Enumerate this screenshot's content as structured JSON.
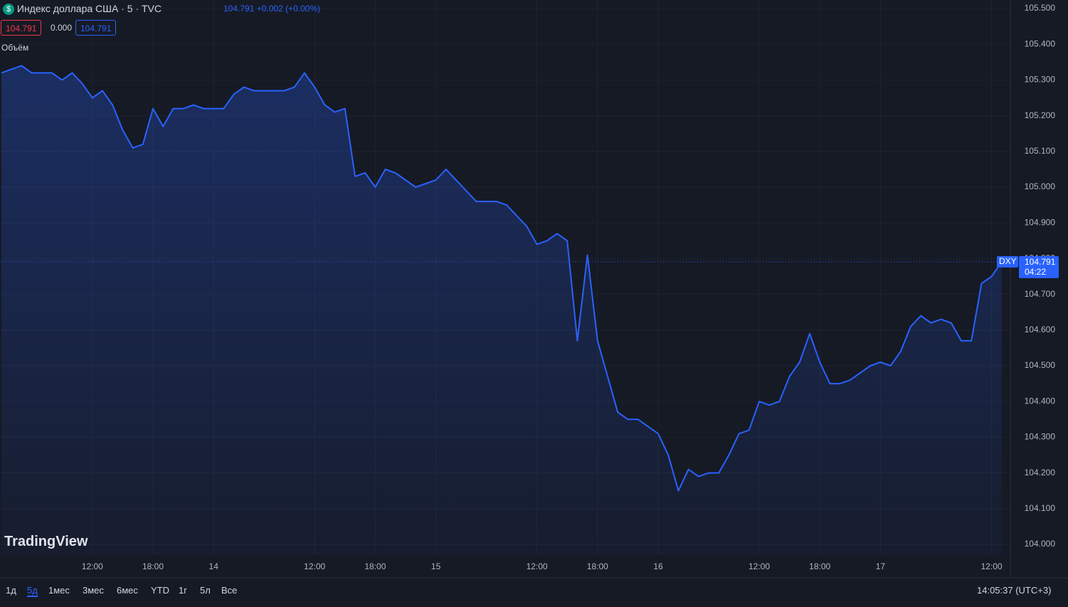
{
  "chart_data": {
    "type": "line",
    "categories": [
      null,
      null,
      null,
      null,
      null,
      null,
      null,
      null,
      null,
      "12:00",
      null,
      null,
      null,
      null,
      null,
      "18:00",
      null,
      null,
      null,
      null,
      null,
      "14",
      null,
      null,
      null,
      null,
      null,
      null,
      null,
      null,
      null,
      "12:00",
      null,
      null,
      null,
      null,
      null,
      "18:00",
      null,
      null,
      null,
      null,
      null,
      "15",
      null,
      null,
      null,
      null,
      null,
      null,
      null,
      null,
      null,
      "12:00",
      null,
      null,
      null,
      null,
      null,
      "18:00",
      null,
      null,
      null,
      null,
      null,
      "16",
      null,
      null,
      null,
      null,
      null,
      null,
      null,
      null,
      null,
      "12:00",
      null,
      null,
      null,
      null,
      null,
      "18:00",
      null,
      null,
      null,
      null,
      null,
      "17",
      null,
      null,
      null,
      null,
      null,
      null,
      null,
      null,
      null,
      null,
      "12:00",
      null
    ],
    "series": [
      {
        "name": "DXY",
        "color": "#2962ff",
        "values": [
          105.32,
          105.33,
          105.34,
          105.32,
          105.32,
          105.32,
          105.3,
          105.32,
          105.29,
          105.25,
          105.27,
          105.23,
          105.16,
          105.11,
          105.12,
          105.22,
          105.17,
          105.22,
          105.22,
          105.23,
          105.22,
          105.22,
          105.22,
          105.26,
          105.28,
          105.27,
          105.27,
          105.27,
          105.27,
          105.28,
          105.32,
          105.28,
          105.23,
          105.21,
          105.22,
          105.03,
          105.04,
          105.0,
          105.05,
          105.04,
          105.02,
          105.0,
          105.01,
          105.02,
          105.05,
          105.02,
          104.99,
          104.96,
          104.96,
          104.96,
          104.95,
          104.92,
          104.89,
          104.84,
          104.85,
          104.87,
          104.85,
          104.57,
          104.81,
          104.57,
          104.47,
          104.37,
          104.35,
          104.35,
          104.33,
          104.31,
          104.25,
          104.15,
          104.21,
          104.19,
          104.2,
          104.2,
          104.25,
          104.31,
          104.32,
          104.4,
          104.39,
          104.4,
          104.47,
          104.51,
          104.59,
          104.51,
          104.45,
          104.45,
          104.46,
          104.48,
          104.5,
          104.51,
          104.5,
          104.54,
          104.61,
          104.64,
          104.62,
          104.63,
          104.62,
          104.57,
          104.57,
          104.73,
          104.75,
          104.791
        ]
      }
    ],
    "ylim": [
      104.0,
      105.5
    ],
    "yticks": [
      {
        "value": 104.0,
        "label": "104.000"
      },
      {
        "value": 104.1,
        "label": "104.100"
      },
      {
        "value": 104.2,
        "label": "104.200"
      },
      {
        "value": 104.3,
        "label": "104.300"
      },
      {
        "value": 104.4,
        "label": "104.400"
      },
      {
        "value": 104.5,
        "label": "104.500"
      },
      {
        "value": 104.6,
        "label": "104.600"
      },
      {
        "value": 104.7,
        "label": "104.700"
      },
      {
        "value": 104.8,
        "label": "104.800"
      },
      {
        "value": 104.9,
        "label": "104.900"
      },
      {
        "value": 105.0,
        "label": "105.000"
      },
      {
        "value": 105.1,
        "label": "105.100"
      },
      {
        "value": 105.2,
        "label": "105.200"
      },
      {
        "value": 105.3,
        "label": "105.300"
      },
      {
        "value": 105.4,
        "label": "105.400"
      },
      {
        "value": 105.5,
        "label": "105.500"
      }
    ],
    "grid": true,
    "area_fill": true,
    "countdown": "04:22"
  },
  "ui": {
    "symbol_title": "Индекс доллара США · 5 · TVC",
    "header_price": "104.791",
    "header_change": "+0.002 (+0.00%)",
    "bid": "104.791",
    "spread": "0.000",
    "ask": "104.791",
    "volume_label": "Объём",
    "logo": "TradingView",
    "ranges": [
      "1д",
      "5д",
      "1мес",
      "3мес",
      "6мес",
      "YTD",
      "1г",
      "5л",
      "Все"
    ],
    "clock": "14:05:37 (UTC+3)"
  }
}
